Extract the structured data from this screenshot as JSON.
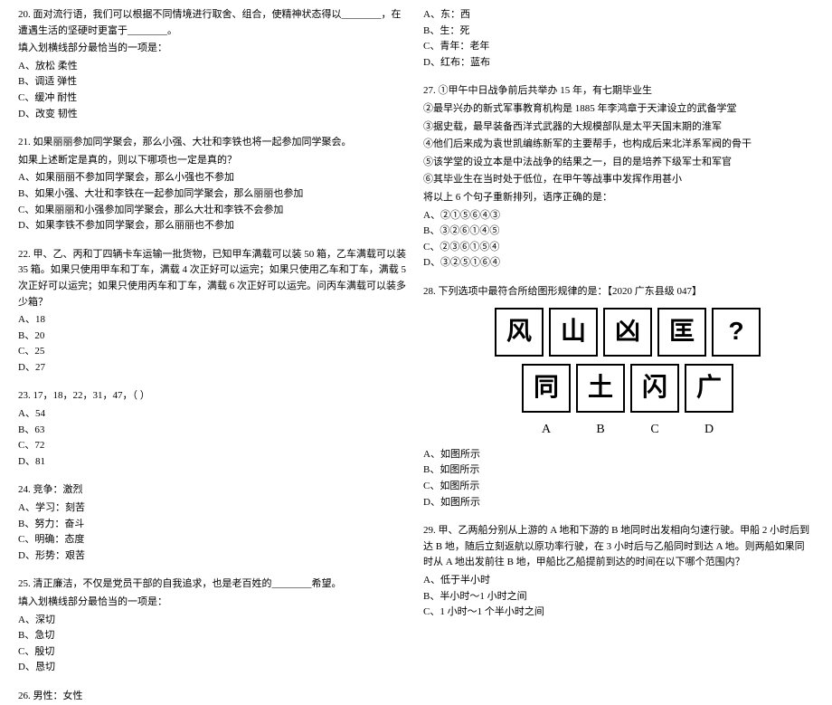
{
  "col1": {
    "q20": {
      "text": "20. 面对流行语，我们可以根据不同情境进行取舍、组合，使精神状态得以________，在遭遇生活的坚硬时更富于________。",
      "prompt": "填入划横线部分最恰当的一项是：",
      "a": "A、放松  柔性",
      "b": "B、调适  弹性",
      "c": "C、缓冲  耐性",
      "d": "D、改变  韧性"
    },
    "q21": {
      "text": "21. 如果丽丽参加同学聚会，那么小强、大壮和李铁也将一起参加同学聚会。",
      "prompt": "如果上述断定是真的，则以下哪项也一定是真的？",
      "a": "A、如果丽丽不参加同学聚会，那么小强也不参加",
      "b": "B、如果小强、大壮和李铁在一起参加同学聚会，那么丽丽也参加",
      "c": "C、如果丽丽和小强参加同学聚会，那么大壮和李铁不会参加",
      "d": "D、如果李铁不参加同学聚会，那么丽丽也不参加"
    },
    "q22": {
      "text": "22. 甲、乙、丙和丁四辆卡车运输一批货物，已知甲车满载可以装 50 箱，乙车满载可以装 35 箱。如果只使用甲车和丁车，满载 4 次正好可以运完；如果只使用乙车和丁车，满载 5 次正好可以运完；如果只使用丙车和丁车，满载 6 次正好可以运完。问丙车满载可以装多少箱？",
      "a": "A、18",
      "b": "B、20",
      "c": "C、25",
      "d": "D、27"
    },
    "q23": {
      "text": "23. 17，18，22，31，47，（    ）",
      "a": "A、54",
      "b": "B、63",
      "c": "C、72",
      "d": "D、81"
    },
    "q24": {
      "text": "24. 竞争：激烈",
      "a": "A、学习：刻苦",
      "b": "B、努力：奋斗",
      "c": "C、明确：态度",
      "d": "D、形势：艰苦"
    },
    "q25": {
      "text": "25. 清正廉洁，不仅是党员干部的自我追求，也是老百姓的________希望。",
      "prompt": "填入划横线部分最恰当的一项是：",
      "a": "A、深切",
      "b": "B、急切",
      "c": "C、殷切",
      "d": "D、恳切"
    },
    "q26": {
      "text": "26. 男性：女性"
    }
  },
  "col2": {
    "q26_opts": {
      "a": "A、东：西",
      "b": "B、生：死",
      "c": "C、青年：老年",
      "d": "D、红布：蓝布"
    },
    "q27": {
      "l1": "27. ①甲午中日战争前后共举办 15 年，有七期毕业生",
      "l2": "②最早兴办的新式军事教育机构是 1885 年李鸿章于天津设立的武备学堂",
      "l3": "③据史载，最早装备西洋式武器的大规模部队是太平天国末期的淮军",
      "l4": "④他们后来成为袁世凯编练新军的主要帮手，也构成后来北洋系军阀的骨干",
      "l5": "⑤该学堂的设立本是中法战争的结果之一，目的是培养下级军士和军官",
      "l6": "⑥其毕业生在当时处于低位，在甲午等战事中发挥作用甚小",
      "prompt": "将以上 6 个句子重新排列，语序正确的是：",
      "a": "A、②①⑤⑥④③",
      "b": "B、③②⑥①④⑤",
      "c": "C、②③⑥①⑤④",
      "d": "D、③②⑤①⑥④"
    },
    "q28": {
      "text": "28. 下列选项中最符合所给图形规律的是：【2020 广东县级 047】",
      "row1": [
        "风",
        "山",
        "凶",
        "匡",
        "?"
      ],
      "row2": [
        "同",
        "土",
        "闪",
        "广"
      ],
      "labels": [
        "A",
        "B",
        "C",
        "D"
      ],
      "a": "A、如图所示",
      "b": "B、如图所示",
      "c": "C、如图所示",
      "d": "D、如图所示"
    },
    "q29": {
      "text": "29. 甲、乙两船分别从上游的 A 地和下游的 B 地同时出发相向匀速行驶。甲船 2 小时后到达 B 地，随后立刻返航以原功率行驶，在 3 小时后与乙船同时到达 A 地。则两船如果同时从 A 地出发前往 B 地，甲船比乙船提前到达的时间在以下哪个范围内？",
      "a": "A、低于半小时",
      "b": "B、半小时～1 小时之间",
      "c": "C、1 小时～1 个半小时之间"
    }
  }
}
